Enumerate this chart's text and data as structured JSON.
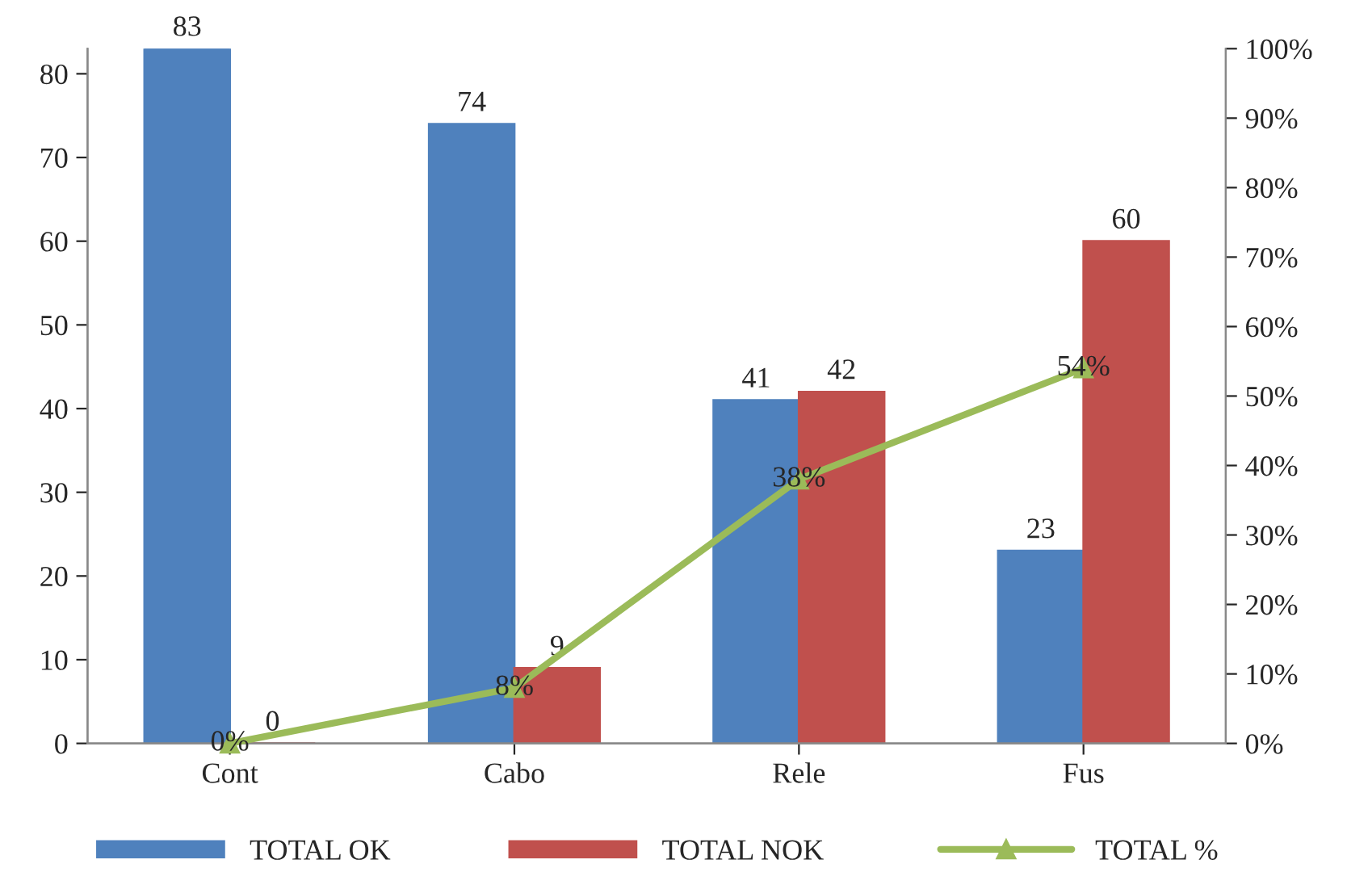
{
  "chart_data": {
    "type": "bar",
    "categories": [
      "Cont",
      "Cabo",
      "Rele",
      "Fus"
    ],
    "series": [
      {
        "name": "TOTAL OK",
        "color": "#4f81bd",
        "values": [
          83,
          74,
          41,
          23
        ],
        "value_labels": [
          "83",
          "74",
          "41",
          "23"
        ]
      },
      {
        "name": "TOTAL NOK",
        "color": "#c0504d",
        "values": [
          0,
          9,
          42,
          60
        ],
        "value_labels": [
          "0",
          "9",
          "42",
          "60"
        ]
      },
      {
        "name": "TOTAL %",
        "type": "line",
        "axis": "y2",
        "color": "#9bbb59",
        "marker": "triangle",
        "values": [
          0,
          8,
          38,
          54
        ],
        "value_labels": [
          "0%",
          "8%",
          "38%",
          "54%"
        ]
      }
    ],
    "ylim": [
      0,
      83
    ],
    "yticks": [
      0,
      10,
      20,
      30,
      40,
      50,
      60,
      70,
      80
    ],
    "y2lim": [
      0,
      100
    ],
    "y2ticks": [
      {
        "value": 0,
        "label": "0%"
      },
      {
        "value": 10,
        "label": "10%"
      },
      {
        "value": 20,
        "label": "20%"
      },
      {
        "value": 30,
        "label": "30%"
      },
      {
        "value": 40,
        "label": "40%"
      },
      {
        "value": 50,
        "label": "50%"
      },
      {
        "value": 60,
        "label": "60%"
      },
      {
        "value": 70,
        "label": "70%"
      },
      {
        "value": 80,
        "label": "80%"
      },
      {
        "value": 90,
        "label": "90%"
      },
      {
        "value": 100,
        "label": "100%"
      }
    ],
    "legend": "bottom",
    "grid": false
  }
}
